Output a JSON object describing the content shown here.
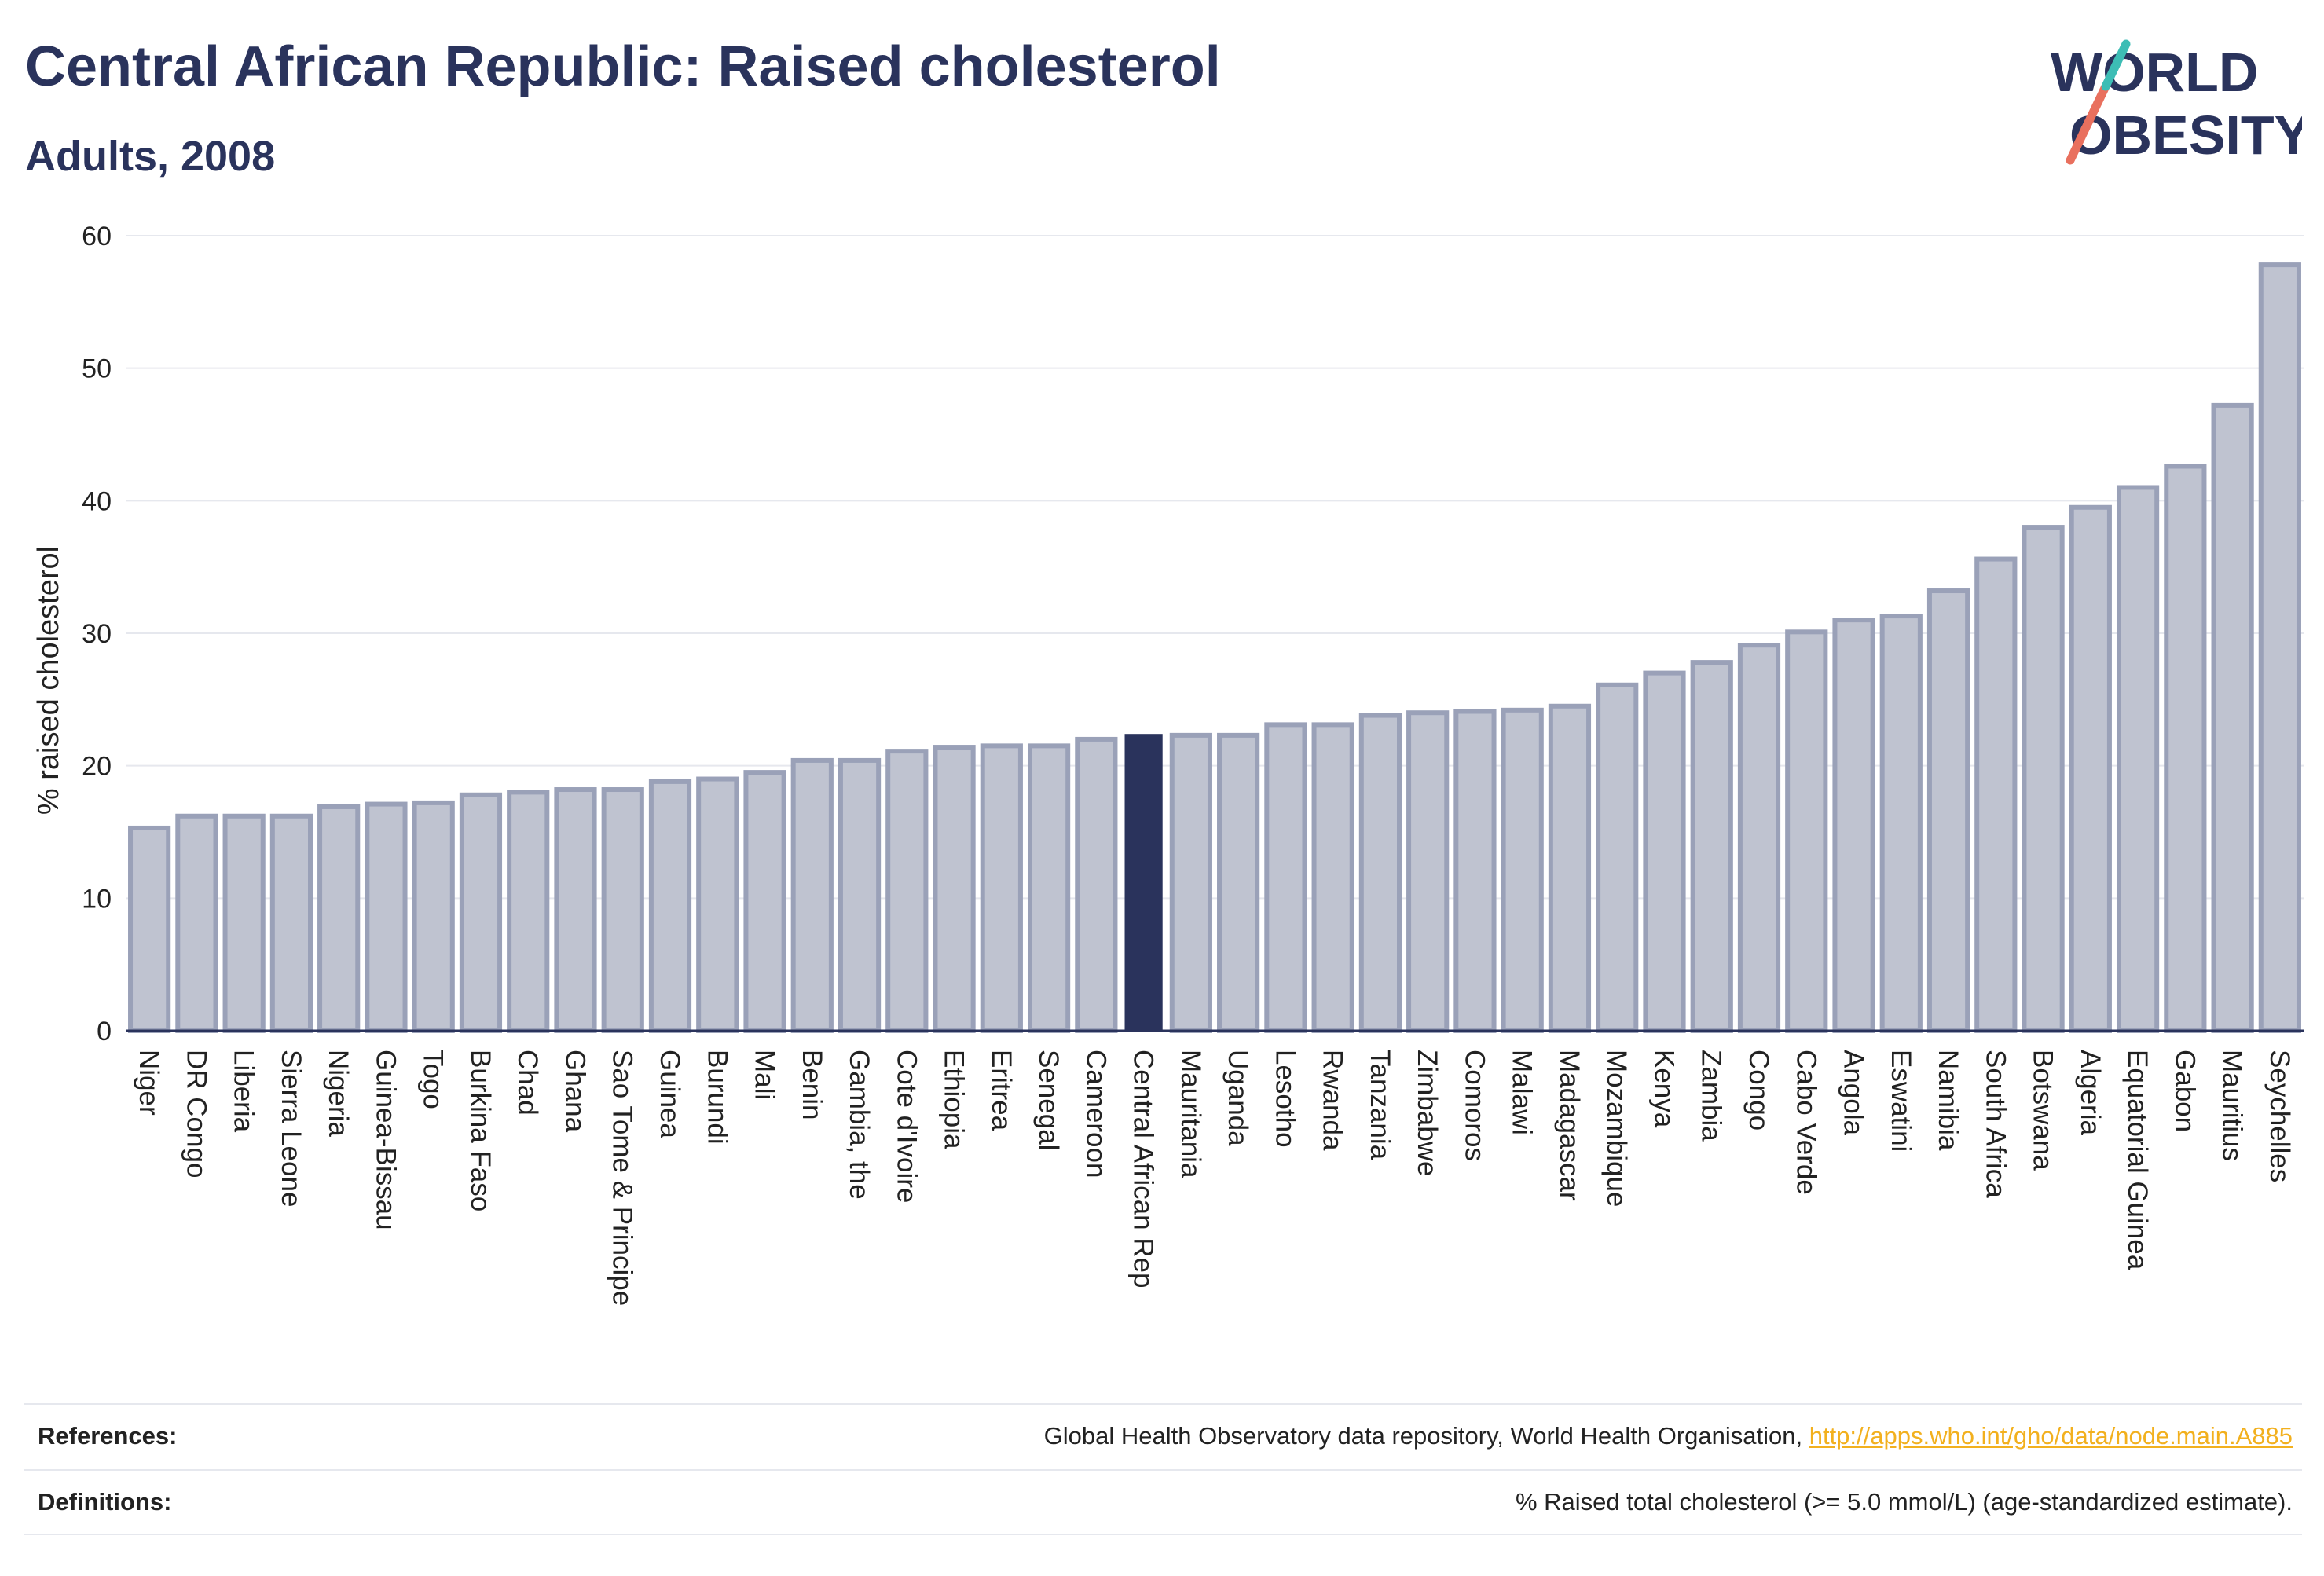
{
  "header": {
    "title": "Central African Republic: Raised cholesterol",
    "subtitle": "Adults, 2008"
  },
  "logo": {
    "line1": "WORLD",
    "line2": "OBESITY"
  },
  "colors": {
    "primary": "#2a335c",
    "bar_fill": "#bfc3d0",
    "bar_stroke": "#9aa1b8",
    "highlight": "#2a335c",
    "grid": "#e6e8ee",
    "link": "#f2b01e",
    "logo_slash_red": "#e9705e",
    "logo_slash_teal": "#3dbdb5"
  },
  "chart_data": {
    "type": "bar",
    "ylabel": "% raised cholesterol",
    "xlabel": "",
    "ylim": [
      0,
      60
    ],
    "yticks": [
      0,
      10,
      20,
      30,
      40,
      50,
      60
    ],
    "grid": true,
    "highlight": "Central African Rep",
    "categories": [
      "Niger",
      "DR Congo",
      "Liberia",
      "Sierra Leone",
      "Nigeria",
      "Guinea-Bissau",
      "Togo",
      "Burkina Faso",
      "Chad",
      "Ghana",
      "Sao Tome & Principe",
      "Guinea",
      "Burundi",
      "Mali",
      "Benin",
      "Gambia, the",
      "Cote d'Ivoire",
      "Ethiopia",
      "Eritrea",
      "Senegal",
      "Cameroon",
      "Central African Rep",
      "Mauritania",
      "Uganda",
      "Lesotho",
      "Rwanda",
      "Tanzania",
      "Zimbabwe",
      "Comoros",
      "Malawi",
      "Madagascar",
      "Mozambique",
      "Kenya",
      "Zambia",
      "Congo",
      "Cabo Verde",
      "Angola",
      "Eswatini",
      "Namibia",
      "South Africa",
      "Botswana",
      "Algeria",
      "Equatorial Guinea",
      "Gabon",
      "Mauritius",
      "Seychelles"
    ],
    "values": [
      15.3,
      16.2,
      16.2,
      16.2,
      16.9,
      17.1,
      17.2,
      17.8,
      18.0,
      18.2,
      18.2,
      18.8,
      19.0,
      19.5,
      20.4,
      20.4,
      21.1,
      21.4,
      21.5,
      21.5,
      22.0,
      22.4,
      22.3,
      22.3,
      23.1,
      23.1,
      23.8,
      24.0,
      24.1,
      24.2,
      24.5,
      26.1,
      27.0,
      27.8,
      29.1,
      30.1,
      31.0,
      31.3,
      33.2,
      35.6,
      38.0,
      39.5,
      41.0,
      42.6,
      47.2,
      57.8
    ]
  },
  "footer": {
    "references_label": "References:",
    "references_text": "Global Health Observatory data repository, World Health Organisation, ",
    "references_link": "http://apps.who.int/gho/data/node.main.A885",
    "definitions_label": "Definitions:",
    "definitions_text": "% Raised total cholesterol (>= 5.0 mmol/L) (age-standardized estimate)."
  }
}
